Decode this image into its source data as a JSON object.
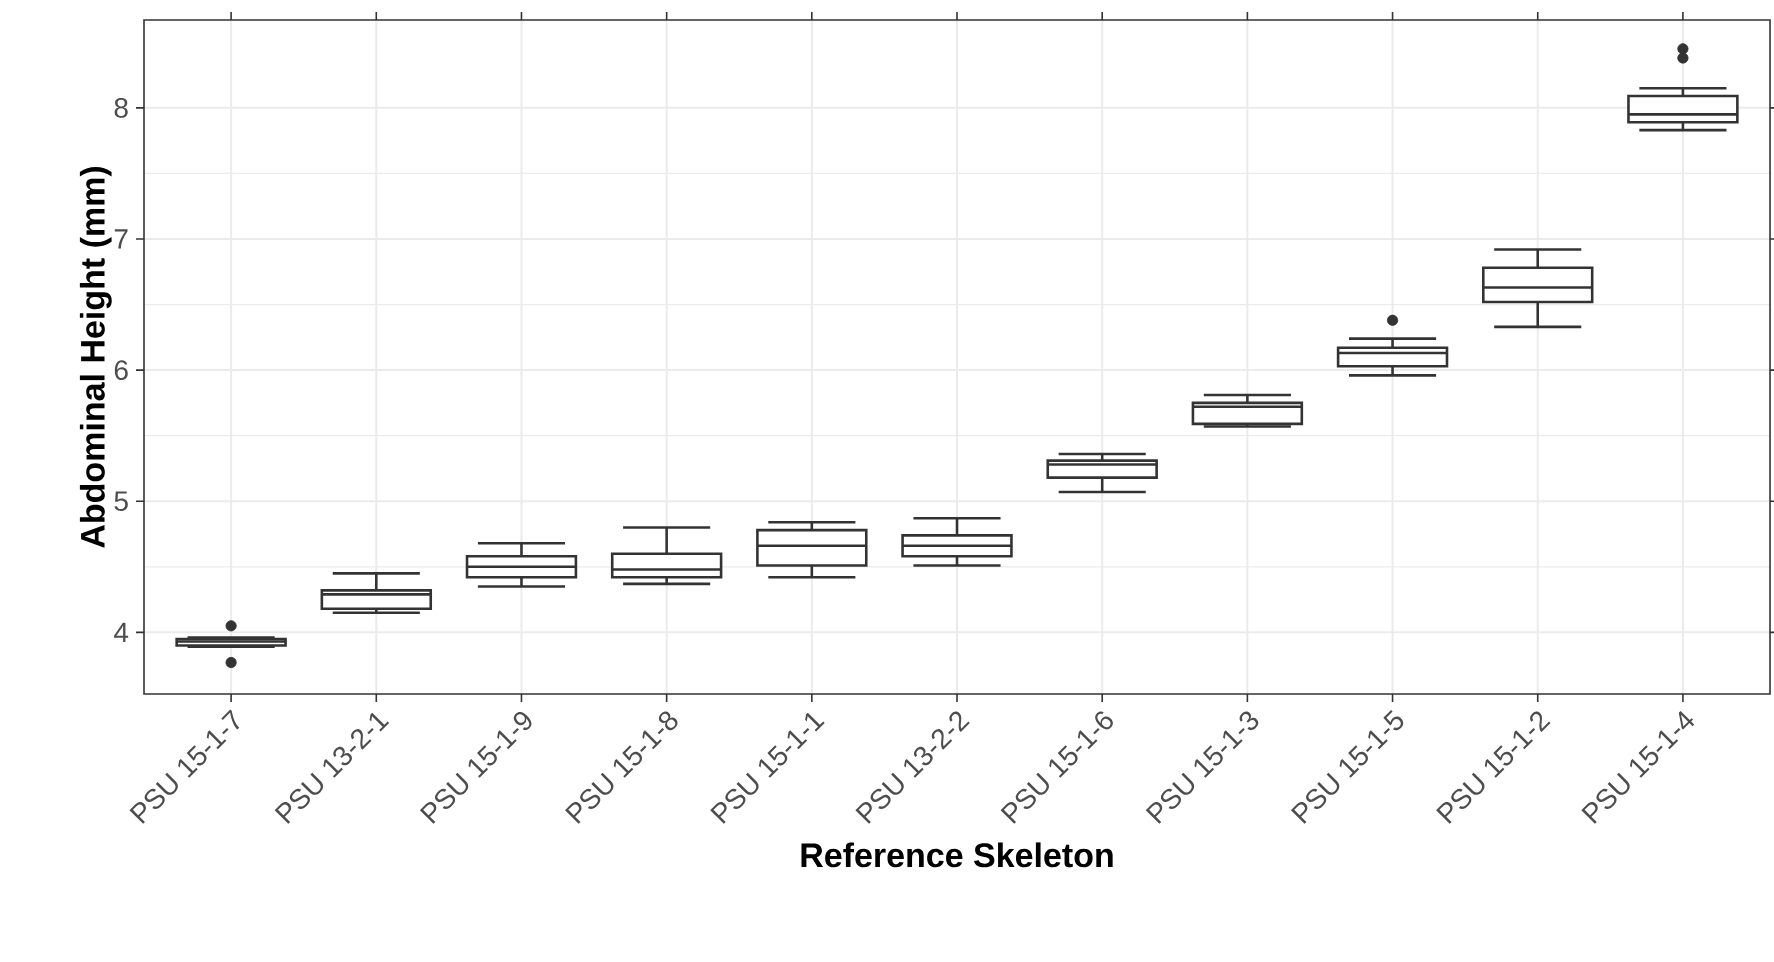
{
  "chart_data": {
    "type": "box",
    "xlabel": "Reference Skeleton",
    "ylabel": "Abdominal Height (mm)",
    "categories": [
      "PSU 15-1-7",
      "PSU 13-2-1",
      "PSU 15-1-9",
      "PSU 15-1-8",
      "PSU 15-1-1",
      "PSU 13-2-2",
      "PSU 15-1-6",
      "PSU 15-1-3",
      "PSU 15-1-5",
      "PSU 15-1-2",
      "PSU 15-1-4"
    ],
    "ylim": [
      3.53,
      8.67
    ],
    "yticks": [
      4,
      5,
      6,
      7,
      8
    ],
    "grid": true,
    "series": [
      {
        "color": "#333333",
        "boxes": [
          {
            "low": 3.89,
            "q1": 3.9,
            "median": 3.93,
            "q3": 3.95,
            "high": 3.96,
            "outliers": [
              4.05,
              3.77
            ]
          },
          {
            "low": 4.15,
            "q1": 4.18,
            "median": 4.29,
            "q3": 4.32,
            "high": 4.45
          },
          {
            "low": 4.35,
            "q1": 4.42,
            "median": 4.5,
            "q3": 4.58,
            "high": 4.68
          },
          {
            "low": 4.37,
            "q1": 4.42,
            "median": 4.48,
            "q3": 4.6,
            "high": 4.8
          },
          {
            "low": 4.42,
            "q1": 4.51,
            "median": 4.66,
            "q3": 4.78,
            "high": 4.84
          },
          {
            "low": 4.51,
            "q1": 4.58,
            "median": 4.66,
            "q3": 4.74,
            "high": 4.87
          },
          {
            "low": 5.07,
            "q1": 5.18,
            "median": 5.28,
            "q3": 5.31,
            "high": 5.36
          },
          {
            "low": 5.57,
            "q1": 5.59,
            "median": 5.72,
            "q3": 5.75,
            "high": 5.81
          },
          {
            "low": 5.96,
            "q1": 6.03,
            "median": 6.13,
            "q3": 6.17,
            "high": 6.24,
            "outliers": [
              6.38
            ]
          },
          {
            "low": 6.33,
            "q1": 6.52,
            "median": 6.63,
            "q3": 6.78,
            "high": 6.92
          },
          {
            "low": 7.83,
            "q1": 7.89,
            "median": 7.95,
            "q3": 8.09,
            "high": 8.15,
            "outliers": [
              8.45,
              8.38
            ]
          }
        ]
      }
    ]
  }
}
